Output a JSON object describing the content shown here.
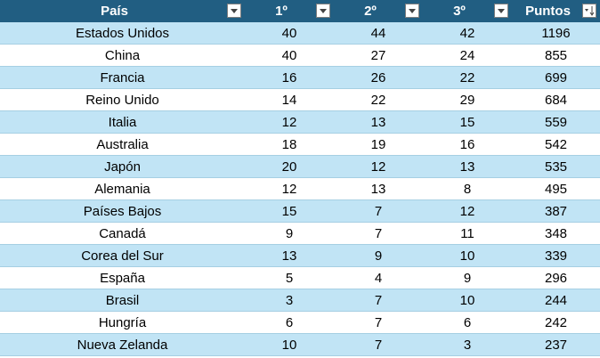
{
  "table": {
    "headers": [
      "País",
      "1º",
      "2º",
      "3º",
      "Puntos"
    ],
    "rows": [
      [
        "Estados Unidos",
        40,
        44,
        42,
        1196
      ],
      [
        "China",
        40,
        27,
        24,
        855
      ],
      [
        "Francia",
        16,
        26,
        22,
        699
      ],
      [
        "Reino Unido",
        14,
        22,
        29,
        684
      ],
      [
        "Italia",
        12,
        13,
        15,
        559
      ],
      [
        "Australia",
        18,
        19,
        16,
        542
      ],
      [
        "Japón",
        20,
        12,
        13,
        535
      ],
      [
        "Alemania",
        12,
        13,
        8,
        495
      ],
      [
        "Países Bajos",
        15,
        7,
        12,
        387
      ],
      [
        "Canadá",
        9,
        7,
        11,
        348
      ],
      [
        "Corea del Sur",
        13,
        9,
        10,
        339
      ],
      [
        "España",
        5,
        4,
        9,
        296
      ],
      [
        "Brasil",
        3,
        7,
        10,
        244
      ],
      [
        "Hungría",
        6,
        7,
        6,
        242
      ],
      [
        "Nueva Zelanda",
        10,
        7,
        3,
        237
      ]
    ]
  }
}
